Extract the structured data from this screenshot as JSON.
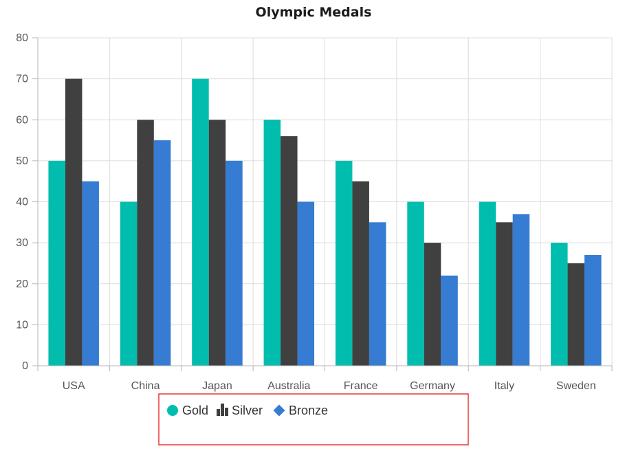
{
  "chart_data": {
    "type": "bar",
    "title": "Olympic Medals",
    "xlabel": "",
    "ylabel": "",
    "categories": [
      "USA",
      "China",
      "Japan",
      "Australia",
      "France",
      "Germany",
      "Italy",
      "Sweden"
    ],
    "series": [
      {
        "name": "Gold",
        "color": "#00bdae",
        "values": [
          50,
          40,
          70,
          60,
          50,
          40,
          40,
          30
        ],
        "legend_icon": "circle-icon"
      },
      {
        "name": "Silver",
        "color": "#404041",
        "values": [
          70,
          60,
          60,
          56,
          45,
          30,
          35,
          25
        ],
        "legend_icon": "bar-chart-icon"
      },
      {
        "name": "Bronze",
        "color": "#357cd2",
        "values": [
          45,
          55,
          50,
          40,
          35,
          22,
          37,
          27
        ],
        "legend_icon": "diamond-icon"
      }
    ],
    "ylim": [
      0,
      80
    ],
    "yticks": [
      0,
      10,
      20,
      30,
      40,
      50,
      60,
      70,
      80
    ],
    "grid": true,
    "legend_position": "bottom",
    "legend_highlight_color": "#e53935"
  }
}
